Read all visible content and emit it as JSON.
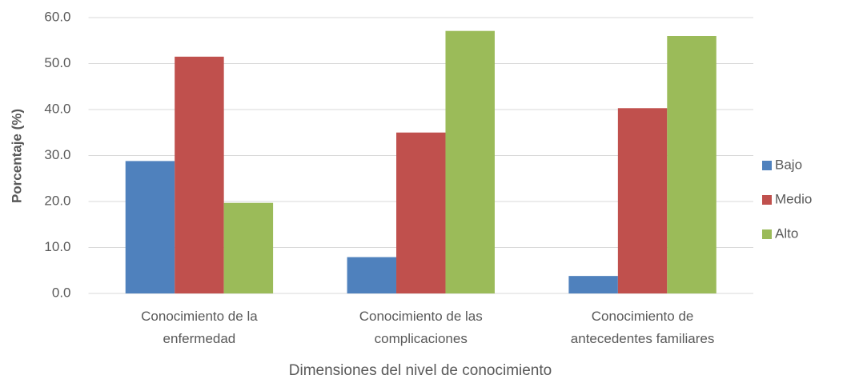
{
  "chart_data": {
    "type": "bar",
    "categories": [
      "Conocimiento de la enfermedad",
      "Conocimiento de las complicaciones",
      "Conocimiento de antecedentes familiares"
    ],
    "series": [
      {
        "name": "Bajo",
        "color": "#4f81bd",
        "values": [
          28.8,
          7.9,
          3.8
        ]
      },
      {
        "name": "Medio",
        "color": "#c0504d",
        "values": [
          51.5,
          35.0,
          40.3
        ]
      },
      {
        "name": "Alto",
        "color": "#9bbb59",
        "values": [
          19.7,
          57.1,
          56.0
        ]
      }
    ],
    "ylabel": "Porcentaje (%)",
    "xlabel": "Dimensiones del nivel de conocimiento",
    "ylim": [
      0,
      60
    ],
    "yticks": [
      {
        "value": 0,
        "label": "0.0"
      },
      {
        "value": 10,
        "label": "10.0"
      },
      {
        "value": 20,
        "label": "20.0"
      },
      {
        "value": 30,
        "label": "30.0"
      },
      {
        "value": 40,
        "label": "40.0"
      },
      {
        "value": 50,
        "label": "50.0"
      },
      {
        "value": 60,
        "label": "60.0"
      }
    ],
    "grid": true,
    "legend": "right"
  }
}
